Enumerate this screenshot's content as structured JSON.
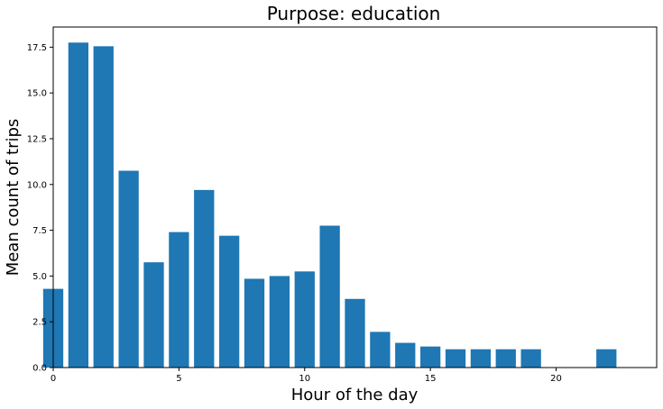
{
  "chart_data": {
    "type": "bar",
    "title": "Purpose: education",
    "xlabel": "Hour of the day",
    "ylabel": "Mean count of trips",
    "xlim": [
      0,
      24
    ],
    "ylim": [
      0,
      18.6
    ],
    "xticks": [
      0,
      5,
      10,
      15,
      20
    ],
    "yticks": [
      0.0,
      2.5,
      5.0,
      7.5,
      10.0,
      12.5,
      15.0,
      17.5
    ],
    "xtick_labels": [
      "0",
      "5",
      "10",
      "15",
      "20"
    ],
    "ytick_labels": [
      "0.0",
      "2.5",
      "5.0",
      "7.5",
      "10.0",
      "12.5",
      "15.0",
      "17.5"
    ],
    "bar_width": 0.8,
    "color": "#1f77b4",
    "grid": false,
    "bars": [
      {
        "x": 0,
        "value": 4.3
      },
      {
        "x": 1,
        "value": 17.75
      },
      {
        "x": 2,
        "value": 17.55
      },
      {
        "x": 3,
        "value": 10.75
      },
      {
        "x": 4,
        "value": 5.75
      },
      {
        "x": 5,
        "value": 7.4
      },
      {
        "x": 6,
        "value": 9.7
      },
      {
        "x": 7,
        "value": 7.2
      },
      {
        "x": 8,
        "value": 4.85
      },
      {
        "x": 9,
        "value": 5.0
      },
      {
        "x": 10,
        "value": 5.25
      },
      {
        "x": 11,
        "value": 7.75
      },
      {
        "x": 12,
        "value": 3.75
      },
      {
        "x": 13,
        "value": 1.95
      },
      {
        "x": 14,
        "value": 1.35
      },
      {
        "x": 15,
        "value": 1.15
      },
      {
        "x": 16,
        "value": 1.0
      },
      {
        "x": 17,
        "value": 1.0
      },
      {
        "x": 18,
        "value": 1.0
      },
      {
        "x": 19,
        "value": 1.0
      },
      {
        "x": 22,
        "value": 1.0
      }
    ]
  }
}
